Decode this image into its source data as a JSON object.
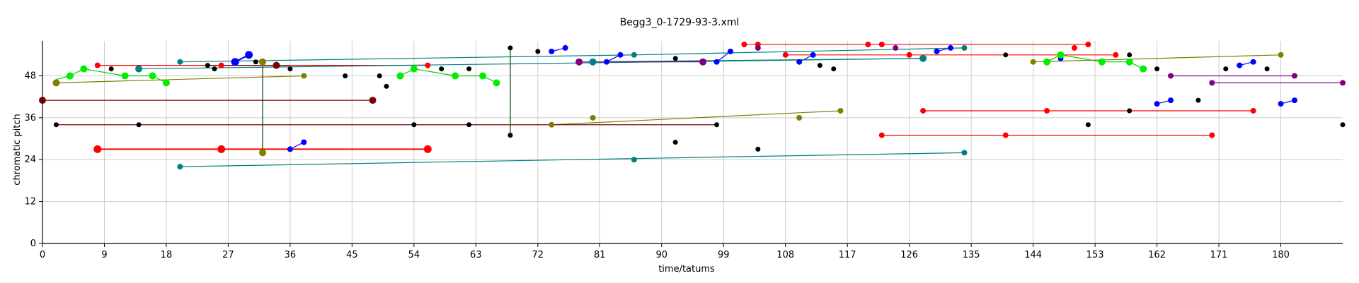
{
  "chart_data": {
    "type": "scatter",
    "title": "Begg3_0-1729-93-3.xml",
    "xlabel": "time/tatums",
    "ylabel": "chromatic pitch",
    "xlim": [
      0,
      189
    ],
    "ylim": [
      0,
      58
    ],
    "x_ticks": [
      0,
      9,
      18,
      27,
      36,
      45,
      54,
      63,
      72,
      81,
      90,
      99,
      108,
      117,
      126,
      135,
      144,
      153,
      162,
      171,
      180
    ],
    "y_ticks": [
      0,
      12,
      24,
      36,
      48
    ],
    "grid": true,
    "series": [
      {
        "color": "#000000",
        "size": 3.5,
        "points": [
          [
            2,
            34
          ],
          [
            10,
            50
          ],
          [
            14,
            34
          ],
          [
            24,
            51
          ],
          [
            25,
            50
          ],
          [
            31,
            52
          ],
          [
            34,
            51
          ],
          [
            36,
            50
          ],
          [
            44,
            48
          ],
          [
            49,
            48
          ],
          [
            50,
            45
          ],
          [
            54,
            34
          ],
          [
            58,
            50
          ],
          [
            62,
            50
          ],
          [
            62,
            34
          ],
          [
            68,
            56
          ],
          [
            68,
            31
          ],
          [
            72,
            55
          ],
          [
            92,
            53
          ],
          [
            92,
            29
          ],
          [
            98,
            34
          ],
          [
            104,
            27
          ],
          [
            113,
            51
          ],
          [
            115,
            50
          ],
          [
            140,
            54
          ],
          [
            152,
            34
          ],
          [
            158,
            54
          ],
          [
            158,
            38
          ],
          [
            162,
            50
          ],
          [
            168,
            41
          ],
          [
            172,
            50
          ],
          [
            178,
            50
          ],
          [
            189,
            34
          ]
        ]
      },
      {
        "color": "#ff0000",
        "size": 4,
        "points": [
          [
            8,
            51
          ],
          [
            26,
            51
          ],
          [
            56,
            51
          ],
          [
            102,
            57
          ],
          [
            104,
            57
          ],
          [
            108,
            54
          ],
          [
            120,
            57
          ],
          [
            122,
            57
          ],
          [
            126,
            54
          ],
          [
            128,
            38
          ],
          [
            150,
            56
          ],
          [
            152,
            57
          ],
          [
            156,
            54
          ],
          [
            146,
            38
          ],
          [
            176,
            38
          ],
          [
            122,
            31
          ],
          [
            140,
            31
          ],
          [
            170,
            31
          ]
        ]
      },
      {
        "color": "#ff0000",
        "size": 5.5,
        "points": [
          [
            8,
            27
          ],
          [
            26,
            27
          ],
          [
            56,
            27
          ]
        ]
      },
      {
        "color": "#0000ff",
        "size": 4,
        "points": [
          [
            36,
            27
          ],
          [
            38,
            29
          ],
          [
            74,
            55
          ],
          [
            76,
            56
          ],
          [
            82,
            52
          ],
          [
            84,
            54
          ],
          [
            98,
            52
          ],
          [
            100,
            55
          ],
          [
            110,
            52
          ],
          [
            112,
            54
          ],
          [
            130,
            55
          ],
          [
            132,
            56
          ],
          [
            146,
            52
          ],
          [
            148,
            53
          ],
          [
            162,
            40
          ],
          [
            164,
            41
          ],
          [
            174,
            51
          ],
          [
            176,
            52
          ],
          [
            180,
            40
          ],
          [
            182,
            41
          ]
        ]
      },
      {
        "color": "#0000ff",
        "size": 5.5,
        "points": [
          [
            28,
            52
          ],
          [
            30,
            54
          ]
        ]
      },
      {
        "color": "#00ee00",
        "size": 5,
        "points": [
          [
            4,
            48
          ],
          [
            6,
            50
          ],
          [
            12,
            48
          ],
          [
            16,
            48
          ],
          [
            18,
            46
          ],
          [
            52,
            48
          ],
          [
            54,
            50
          ],
          [
            60,
            48
          ],
          [
            64,
            48
          ],
          [
            66,
            46
          ],
          [
            146,
            52
          ],
          [
            148,
            54
          ],
          [
            154,
            52
          ],
          [
            158,
            52
          ],
          [
            160,
            50
          ]
        ]
      },
      {
        "color": "#008080",
        "size": 4,
        "points": [
          [
            20,
            52
          ],
          [
            20,
            22
          ],
          [
            86,
            54
          ],
          [
            86,
            24
          ],
          [
            134,
            56
          ],
          [
            134,
            26
          ]
        ]
      },
      {
        "color": "#008080",
        "size": 5,
        "points": [
          [
            14,
            50
          ],
          [
            80,
            52
          ],
          [
            128,
            53
          ]
        ]
      },
      {
        "color": "#808000",
        "size": 4,
        "points": [
          [
            38,
            48
          ],
          [
            74,
            34
          ],
          [
            80,
            36
          ],
          [
            110,
            36
          ],
          [
            116,
            38
          ],
          [
            144,
            52
          ],
          [
            180,
            54
          ]
        ]
      },
      {
        "color": "#808000",
        "size": 5,
        "points": [
          [
            2,
            46
          ],
          [
            32,
            52
          ],
          [
            32,
            26
          ]
        ]
      },
      {
        "color": "#800080",
        "size": 4,
        "points": [
          [
            104,
            56
          ],
          [
            124,
            56
          ],
          [
            164,
            48
          ],
          [
            170,
            46
          ],
          [
            182,
            48
          ],
          [
            189,
            46
          ]
        ]
      },
      {
        "color": "#800080",
        "size": 5,
        "points": [
          [
            78,
            52
          ],
          [
            96,
            52
          ]
        ]
      },
      {
        "color": "#800000",
        "size": 5,
        "points": [
          [
            0,
            41
          ],
          [
            48,
            41
          ],
          [
            34,
            51
          ]
        ]
      }
    ],
    "segments": [
      {
        "color": "#ff0000",
        "lines": [
          [
            8,
            51,
            56,
            51
          ],
          [
            102,
            57,
            152,
            57
          ],
          [
            108,
            54,
            156,
            54
          ],
          [
            128,
            38,
            176,
            38
          ],
          [
            122,
            31,
            170,
            31
          ]
        ]
      },
      {
        "color": "#ff0000",
        "width": 2,
        "lines": [
          [
            8,
            27,
            56,
            27
          ]
        ]
      },
      {
        "color": "#0000ff",
        "lines": [
          [
            36,
            27,
            38,
            29
          ],
          [
            74,
            55,
            76,
            56
          ],
          [
            82,
            52,
            84,
            54
          ],
          [
            98,
            52,
            100,
            55
          ],
          [
            110,
            52,
            112,
            54
          ],
          [
            130,
            55,
            132,
            56
          ],
          [
            162,
            40,
            164,
            41
          ],
          [
            174,
            51,
            176,
            52
          ],
          [
            180,
            40,
            182,
            41
          ]
        ]
      },
      {
        "color": "#0000ff",
        "width": 2,
        "lines": [
          [
            28,
            52,
            30,
            54
          ]
        ]
      },
      {
        "color": "#00cc00",
        "lines": [
          [
            2,
            47,
            4,
            48
          ],
          [
            4,
            48,
            6,
            50
          ],
          [
            6,
            50,
            12,
            48
          ],
          [
            12,
            48,
            16,
            48
          ],
          [
            16,
            48,
            18,
            46
          ],
          [
            52,
            48,
            54,
            50
          ],
          [
            54,
            50,
            60,
            48
          ],
          [
            60,
            48,
            64,
            48
          ],
          [
            64,
            48,
            66,
            46
          ],
          [
            146,
            52,
            148,
            54
          ],
          [
            148,
            54,
            154,
            52
          ],
          [
            154,
            52,
            158,
            52
          ],
          [
            158,
            52,
            160,
            50
          ]
        ]
      },
      {
        "color": "#008080",
        "lines": [
          [
            20,
            52,
            86,
            54
          ],
          [
            86,
            54,
            134,
            56
          ],
          [
            20,
            22,
            134,
            26
          ],
          [
            14,
            50,
            128,
            53
          ],
          [
            80,
            52,
            128,
            53
          ]
        ]
      },
      {
        "color": "#808000",
        "lines": [
          [
            2,
            46,
            38,
            48
          ],
          [
            74,
            34,
            116,
            38
          ],
          [
            144,
            52,
            180,
            54
          ]
        ]
      },
      {
        "color": "#800080",
        "lines": [
          [
            78,
            52,
            96,
            52
          ],
          [
            164,
            48,
            182,
            48
          ],
          [
            170,
            46,
            189,
            46
          ]
        ]
      },
      {
        "color": "#800000",
        "lines": [
          [
            0,
            41,
            48,
            41
          ],
          [
            2,
            34,
            98,
            34
          ],
          [
            24,
            51,
            36,
            51
          ]
        ]
      },
      {
        "color": "#004400",
        "lines": [
          [
            32,
            52,
            32,
            26
          ],
          [
            68,
            56,
            68,
            31
          ]
        ]
      }
    ]
  }
}
